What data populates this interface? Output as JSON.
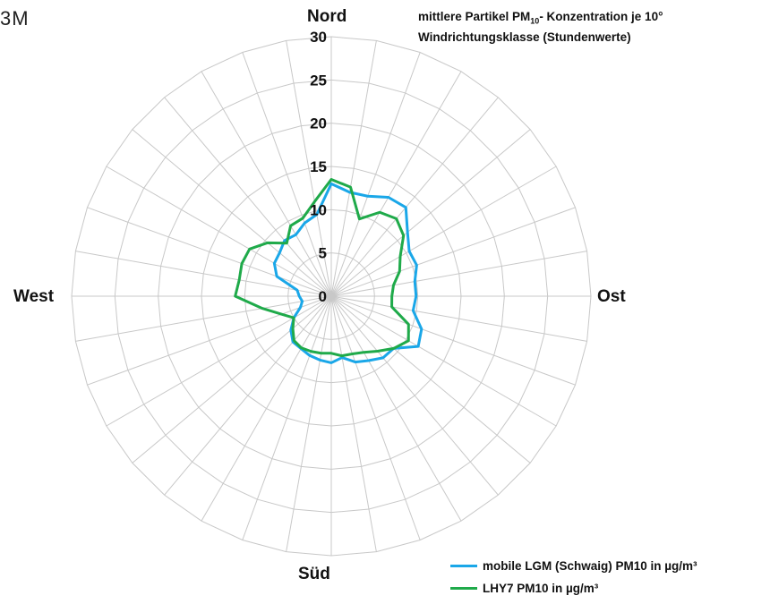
{
  "corner_text": "3M",
  "title": {
    "line1_pre": "mittlere Partikel PM",
    "line1_sub": "10",
    "line1_post": "- Konzentration je 10°",
    "line2": "Windrichtungsklasse (Stundenwerte)"
  },
  "directions": {
    "north": "Nord",
    "east": "Ost",
    "south": "Süd",
    "west": "West"
  },
  "colors": {
    "series1": "#1aa7e8",
    "series2": "#1faa4a",
    "grid": "#c8c8c8"
  },
  "chart_data": {
    "type": "radar",
    "title": "mittlere Partikel PM10- Konzentration je 10° Windrichtungsklasse (Stundenwerte)",
    "angles_deg": [
      0,
      10,
      20,
      30,
      40,
      50,
      60,
      70,
      80,
      90,
      100,
      110,
      120,
      130,
      140,
      150,
      160,
      170,
      180,
      190,
      200,
      210,
      220,
      230,
      240,
      250,
      260,
      270,
      280,
      290,
      300,
      310,
      320,
      330,
      340,
      350
    ],
    "radial_ticks": [
      0,
      5,
      10,
      15,
      20,
      25,
      30
    ],
    "rlim": [
      0,
      30
    ],
    "series": [
      {
        "name": "mobile LGM (Schwaig) PM10 in µg/m³",
        "values": [
          13.0,
          12.2,
          12.3,
          13.2,
          13.4,
          11.5,
          10.4,
          10.5,
          9.8,
          9.8,
          9.6,
          11.1,
          11.6,
          9.4,
          9.3,
          8.6,
          8.1,
          7.2,
          7.7,
          7.5,
          7.3,
          7.0,
          6.9,
          6.1,
          5.0,
          3.8,
          3.4,
          3.7,
          4.0,
          6.7,
          7.6,
          7.8,
          8.4,
          8.2,
          9.0,
          9.6
        ]
      },
      {
        "name": "LHY7 PM10 in µg/m³",
        "values": [
          13.5,
          12.8,
          9.5,
          11.2,
          11.7,
          10.9,
          9.2,
          8.4,
          7.3,
          7.0,
          7.1,
          9.5,
          10.3,
          9.4,
          8.3,
          7.5,
          7.1,
          7.0,
          6.6,
          6.7,
          6.8,
          6.9,
          6.7,
          5.8,
          5.0,
          6.1,
          8.1,
          11.1,
          10.8,
          11.0,
          10.9,
          9.6,
          8.0,
          9.4,
          9.6,
          11.1
        ]
      }
    ],
    "legend_position": "bottom-right",
    "grid": true
  }
}
